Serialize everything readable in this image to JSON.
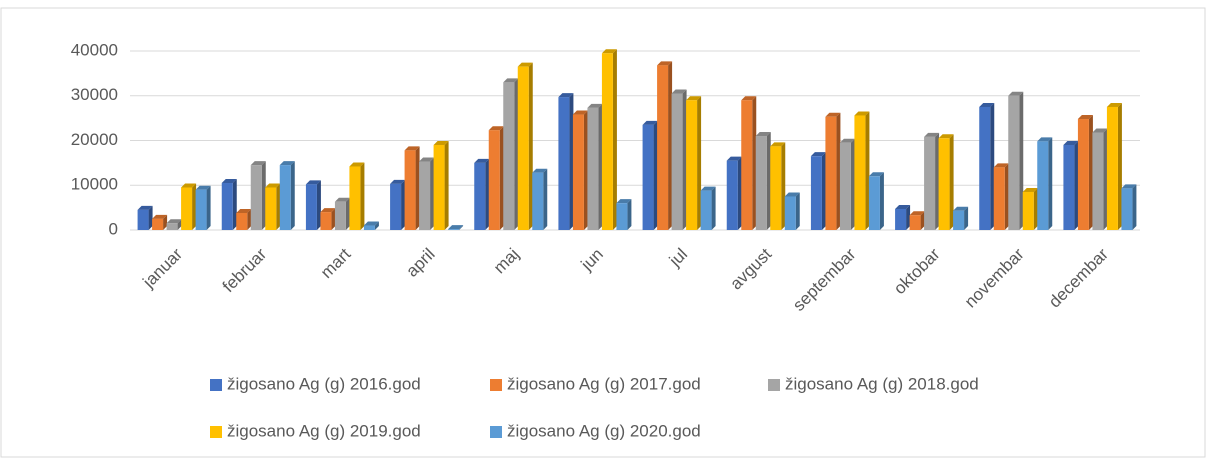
{
  "chart_data": {
    "type": "bar",
    "categories": [
      "januar",
      "februar",
      "mart",
      "april",
      "maj",
      "jun",
      "jul",
      "avgust",
      "septembar",
      "oktobar",
      "novembar",
      "decembar"
    ],
    "series": [
      {
        "name": "žigosano Ag (g) 2016.god",
        "color": "#4472c4",
        "values": [
          4500,
          10500,
          10200,
          10300,
          15000,
          29700,
          23500,
          15500,
          16500,
          4700,
          27500,
          19000
        ]
      },
      {
        "name": "žigosano Ag (g) 2017.god",
        "color": "#ed7d31",
        "values": [
          2500,
          3800,
          4000,
          17800,
          22300,
          25800,
          36800,
          29000,
          25300,
          3300,
          14000,
          24800
        ]
      },
      {
        "name": "žigosano Ag (g) 2018.god",
        "color": "#a5a5a5",
        "values": [
          1500,
          14500,
          6300,
          15300,
          33000,
          27300,
          30500,
          21000,
          19500,
          20800,
          30000,
          21800
        ]
      },
      {
        "name": "žigosano Ag (g) 2019.god",
        "color": "#ffc000",
        "values": [
          9500,
          9500,
          14200,
          19000,
          36500,
          39500,
          29000,
          18700,
          25600,
          20500,
          8500,
          27500
        ]
      },
      {
        "name": "žigosano Ag (g) 2020.god",
        "color": "#5b9bd5",
        "values": [
          9000,
          14500,
          1000,
          200,
          12800,
          6000,
          8800,
          7500,
          12000,
          4300,
          19800,
          9300
        ]
      }
    ],
    "ylim": [
      0,
      40000
    ],
    "yticks": [
      0,
      10000,
      20000,
      30000,
      40000
    ],
    "grid": true,
    "legend": "bottom"
  }
}
